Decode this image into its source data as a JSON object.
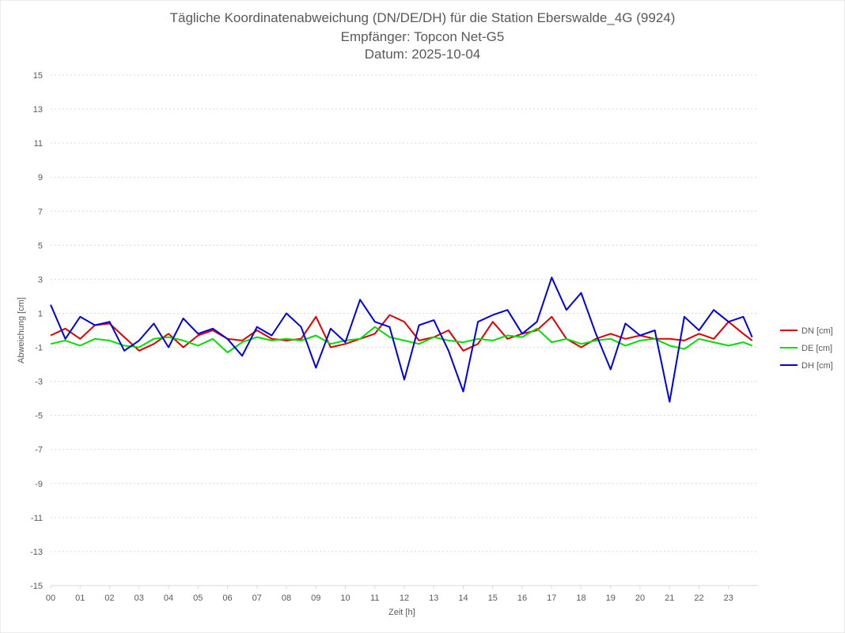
{
  "chart_data": {
    "type": "line",
    "title": "Tägliche Koordinatenabweichung (DN/DE/DH) für die Station Eberswalde_4G (9924)",
    "subtitle": "Empfänger: Topcon Net-G5",
    "date_label": "Datum: 2025-10-04",
    "xlabel": "Zeit [h]",
    "ylabel": "Abweichung [cm]",
    "xlim": [
      0,
      24
    ],
    "ylim": [
      -15,
      15
    ],
    "x_ticks": [
      "00",
      "01",
      "02",
      "03",
      "04",
      "05",
      "06",
      "07",
      "08",
      "09",
      "10",
      "11",
      "12",
      "13",
      "14",
      "15",
      "16",
      "17",
      "18",
      "19",
      "20",
      "21",
      "22",
      "23"
    ],
    "y_ticks": [
      "15",
      "13",
      "11",
      "9",
      "7",
      "5",
      "3",
      "1",
      "-1",
      "-3",
      "-5",
      "-7",
      "-9",
      "-11",
      "-13",
      "-15"
    ],
    "y_tick_values": [
      15,
      13,
      11,
      9,
      7,
      5,
      3,
      1,
      -1,
      -3,
      -5,
      -7,
      -9,
      -11,
      -13,
      -15
    ],
    "grid": "horizontal-dotted",
    "legend_position": "right",
    "x": [
      0,
      0.5,
      1,
      1.5,
      2,
      2.5,
      3,
      3.5,
      4,
      4.5,
      5,
      5.5,
      6,
      6.5,
      7,
      7.5,
      8,
      8.5,
      9,
      9.5,
      10,
      10.5,
      11,
      11.5,
      12,
      12.5,
      13,
      13.5,
      14,
      14.5,
      15,
      15.5,
      16,
      16.5,
      17,
      17.5,
      18,
      18.5,
      19,
      19.5,
      20,
      20.5,
      21,
      21.5,
      22,
      22.5,
      23,
      23.5,
      23.8
    ],
    "series": [
      {
        "name": "DN [cm]",
        "color": "#e00000",
        "values": [
          -0.3,
          0.1,
          -0.5,
          0.3,
          0.4,
          -0.4,
          -1.2,
          -0.8,
          -0.2,
          -1.0,
          -0.3,
          0.0,
          -0.5,
          -0.6,
          0.0,
          -0.5,
          -0.6,
          -0.5,
          0.8,
          -1.0,
          -0.8,
          -0.5,
          -0.2,
          0.9,
          0.5,
          -0.6,
          -0.4,
          0.0,
          -1.2,
          -0.8,
          0.5,
          -0.5,
          -0.2,
          0.0,
          0.8,
          -0.5,
          -1.0,
          -0.5,
          -0.2,
          -0.5,
          -0.3,
          -0.5,
          -0.5,
          -0.6,
          -0.2,
          -0.5,
          0.5,
          -0.2,
          -0.6
        ]
      },
      {
        "name": "DE [cm]",
        "color": "#00e000",
        "values": [
          -0.8,
          -0.6,
          -0.9,
          -0.5,
          -0.6,
          -0.9,
          -1.0,
          -0.5,
          -0.4,
          -0.6,
          -0.9,
          -0.5,
          -1.3,
          -0.7,
          -0.4,
          -0.6,
          -0.5,
          -0.6,
          -0.3,
          -0.8,
          -0.6,
          -0.5,
          0.2,
          -0.4,
          -0.6,
          -0.8,
          -0.4,
          -0.6,
          -0.7,
          -0.5,
          -0.6,
          -0.3,
          -0.4,
          0.1,
          -0.7,
          -0.5,
          -0.8,
          -0.6,
          -0.5,
          -0.9,
          -0.6,
          -0.5,
          -0.9,
          -1.1,
          -0.5,
          -0.7,
          -0.9,
          -0.7,
          -0.9
        ]
      },
      {
        "name": "DH [cm]",
        "color": "#0000e0",
        "values": [
          1.5,
          -0.5,
          0.8,
          0.3,
          0.5,
          -1.2,
          -0.6,
          0.4,
          -1.0,
          0.7,
          -0.2,
          0.1,
          -0.5,
          -1.5,
          0.2,
          -0.3,
          1.0,
          0.2,
          -2.2,
          0.1,
          -0.7,
          1.8,
          0.5,
          0.2,
          -2.9,
          0.3,
          0.6,
          -1.2,
          -3.6,
          0.5,
          0.9,
          1.2,
          -0.2,
          0.5,
          3.1,
          1.2,
          2.2,
          -0.2,
          -2.3,
          0.4,
          -0.3,
          0.0,
          -4.2,
          0.8,
          0.0,
          1.2,
          0.5,
          0.8,
          -0.4
        ]
      }
    ]
  }
}
